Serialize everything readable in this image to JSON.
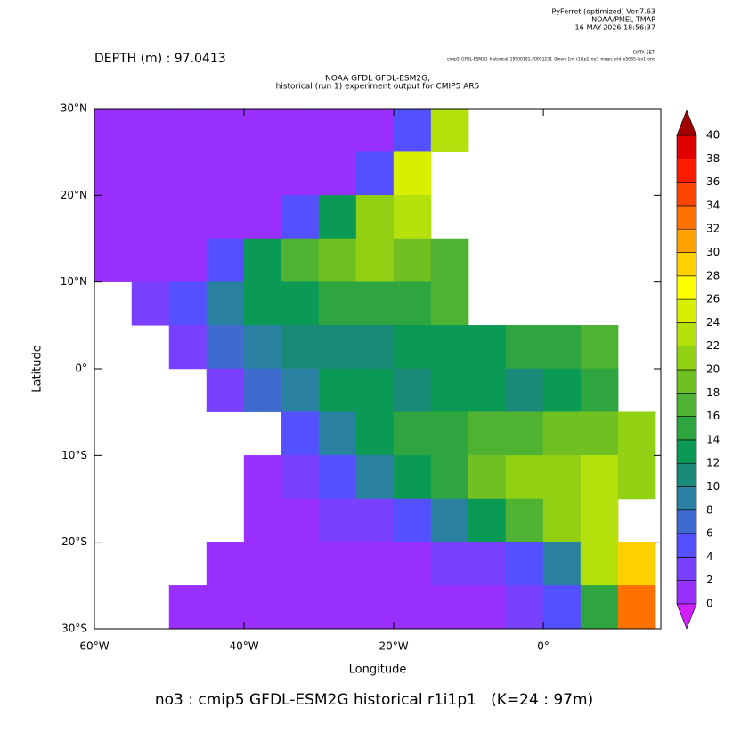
{
  "chart_data": {
    "type": "heatmap",
    "header": [
      "PyFerret (optimized) Ver.7.63",
      "NOAA/PMEL TMAP",
      "16-MAY-2026 18:56:37"
    ],
    "depth_label": "DEPTH (m) : 97.0413",
    "dataset_label": "DATA SET:",
    "dataset": "cmip5_GFDL-ESM2G_historical_19500101-20051231_0mon_1m_r1i1p1_no3_mean.grid_e5035-lev1_orig",
    "title": [
      "NOAA GFDL GFDL-ESM2G,",
      "historical (run 1) experiment output for CMIP5 AR5"
    ],
    "xlabel": "Longitude",
    "ylabel": "Latitude",
    "caption": "no3 : cmip5 GFDL-ESM2G historical r1i1p1   (K=24 : 97m)",
    "xlim": [
      -60,
      15.7
    ],
    "ylim": [
      -30,
      30
    ],
    "xticks": [
      {
        "value": -60,
        "label": "60°W"
      },
      {
        "value": -40,
        "label": "40°W"
      },
      {
        "value": -20,
        "label": "20°W"
      },
      {
        "value": 0,
        "label": "0°"
      }
    ],
    "yticks": [
      {
        "value": -30,
        "label": "30°S"
      },
      {
        "value": -20,
        "label": "20°S"
      },
      {
        "value": -10,
        "label": "10°S"
      },
      {
        "value": 0,
        "label": "0°"
      },
      {
        "value": 10,
        "label": "10°N"
      },
      {
        "value": 20,
        "label": "20°N"
      },
      {
        "value": 30,
        "label": "30°N"
      }
    ],
    "x": [
      -57.5,
      -52.5,
      -47.5,
      -42.5,
      -37.5,
      -32.5,
      -27.5,
      -22.5,
      -17.5,
      -12.5,
      -7.5,
      -2.5,
      2.5,
      7.5,
      12.5
    ],
    "y": [
      27.5,
      22.5,
      17.5,
      12.5,
      7.5,
      2.5,
      -2.5,
      -7.5,
      -12.5,
      -17.5,
      -22.5,
      -27.5
    ],
    "z": [
      [
        1,
        1,
        1,
        1,
        1,
        1,
        1,
        1,
        5,
        22,
        null,
        null,
        null,
        null,
        null
      ],
      [
        1,
        1,
        1,
        1,
        1,
        1,
        1,
        5,
        25,
        null,
        null,
        null,
        null,
        null,
        null
      ],
      [
        1,
        1,
        1,
        1,
        1,
        4,
        12,
        20,
        23,
        null,
        null,
        null,
        null,
        null,
        null
      ],
      [
        1,
        1,
        1,
        5,
        12,
        17,
        19,
        20,
        19,
        16,
        null,
        null,
        null,
        null,
        null
      ],
      [
        null,
        2,
        4,
        8,
        12,
        13,
        14,
        14,
        15,
        16,
        null,
        null,
        null,
        null,
        null
      ],
      [
        null,
        null,
        3,
        6,
        8,
        10,
        11,
        11,
        12,
        12,
        13,
        14,
        15,
        16,
        null
      ],
      [
        null,
        null,
        null,
        3,
        6,
        9,
        12,
        12,
        11,
        12,
        12,
        11,
        12,
        14,
        null
      ],
      [
        null,
        null,
        null,
        null,
        null,
        4,
        9,
        12,
        14,
        15,
        16,
        17,
        18,
        19,
        20
      ],
      [
        null,
        null,
        null,
        null,
        1,
        3,
        5,
        8,
        12,
        15,
        18,
        20,
        21,
        22,
        21
      ],
      [
        null,
        null,
        null,
        null,
        1,
        1,
        2,
        3,
        5,
        8,
        12,
        16,
        20,
        23,
        null
      ],
      [
        null,
        null,
        null,
        1,
        1,
        1,
        1,
        1,
        1,
        2,
        3,
        5,
        9,
        22,
        28
      ],
      [
        null,
        null,
        1,
        1,
        1,
        1,
        1,
        1,
        1,
        1,
        1,
        2,
        4,
        14,
        33
      ]
    ],
    "levels": [
      0,
      2,
      4,
      6,
      8,
      10,
      12,
      14,
      16,
      18,
      20,
      22,
      24,
      26,
      28,
      30,
      32,
      34,
      36,
      38,
      40
    ],
    "colors": [
      "#9a30ff",
      "#7a40ff",
      "#5450ff",
      "#3f6ad0",
      "#2a80a0",
      "#1a8a78",
      "#0a9a55",
      "#2fa540",
      "#4fb232",
      "#70c022",
      "#92d014",
      "#b4e00c",
      "#d8f000",
      "#ffff00",
      "#ffd000",
      "#ffa200",
      "#ff7200",
      "#ff4500",
      "#ff1a00",
      "#e00000"
    ],
    "under_color": "#d020ff",
    "over_color": "#a00000"
  }
}
